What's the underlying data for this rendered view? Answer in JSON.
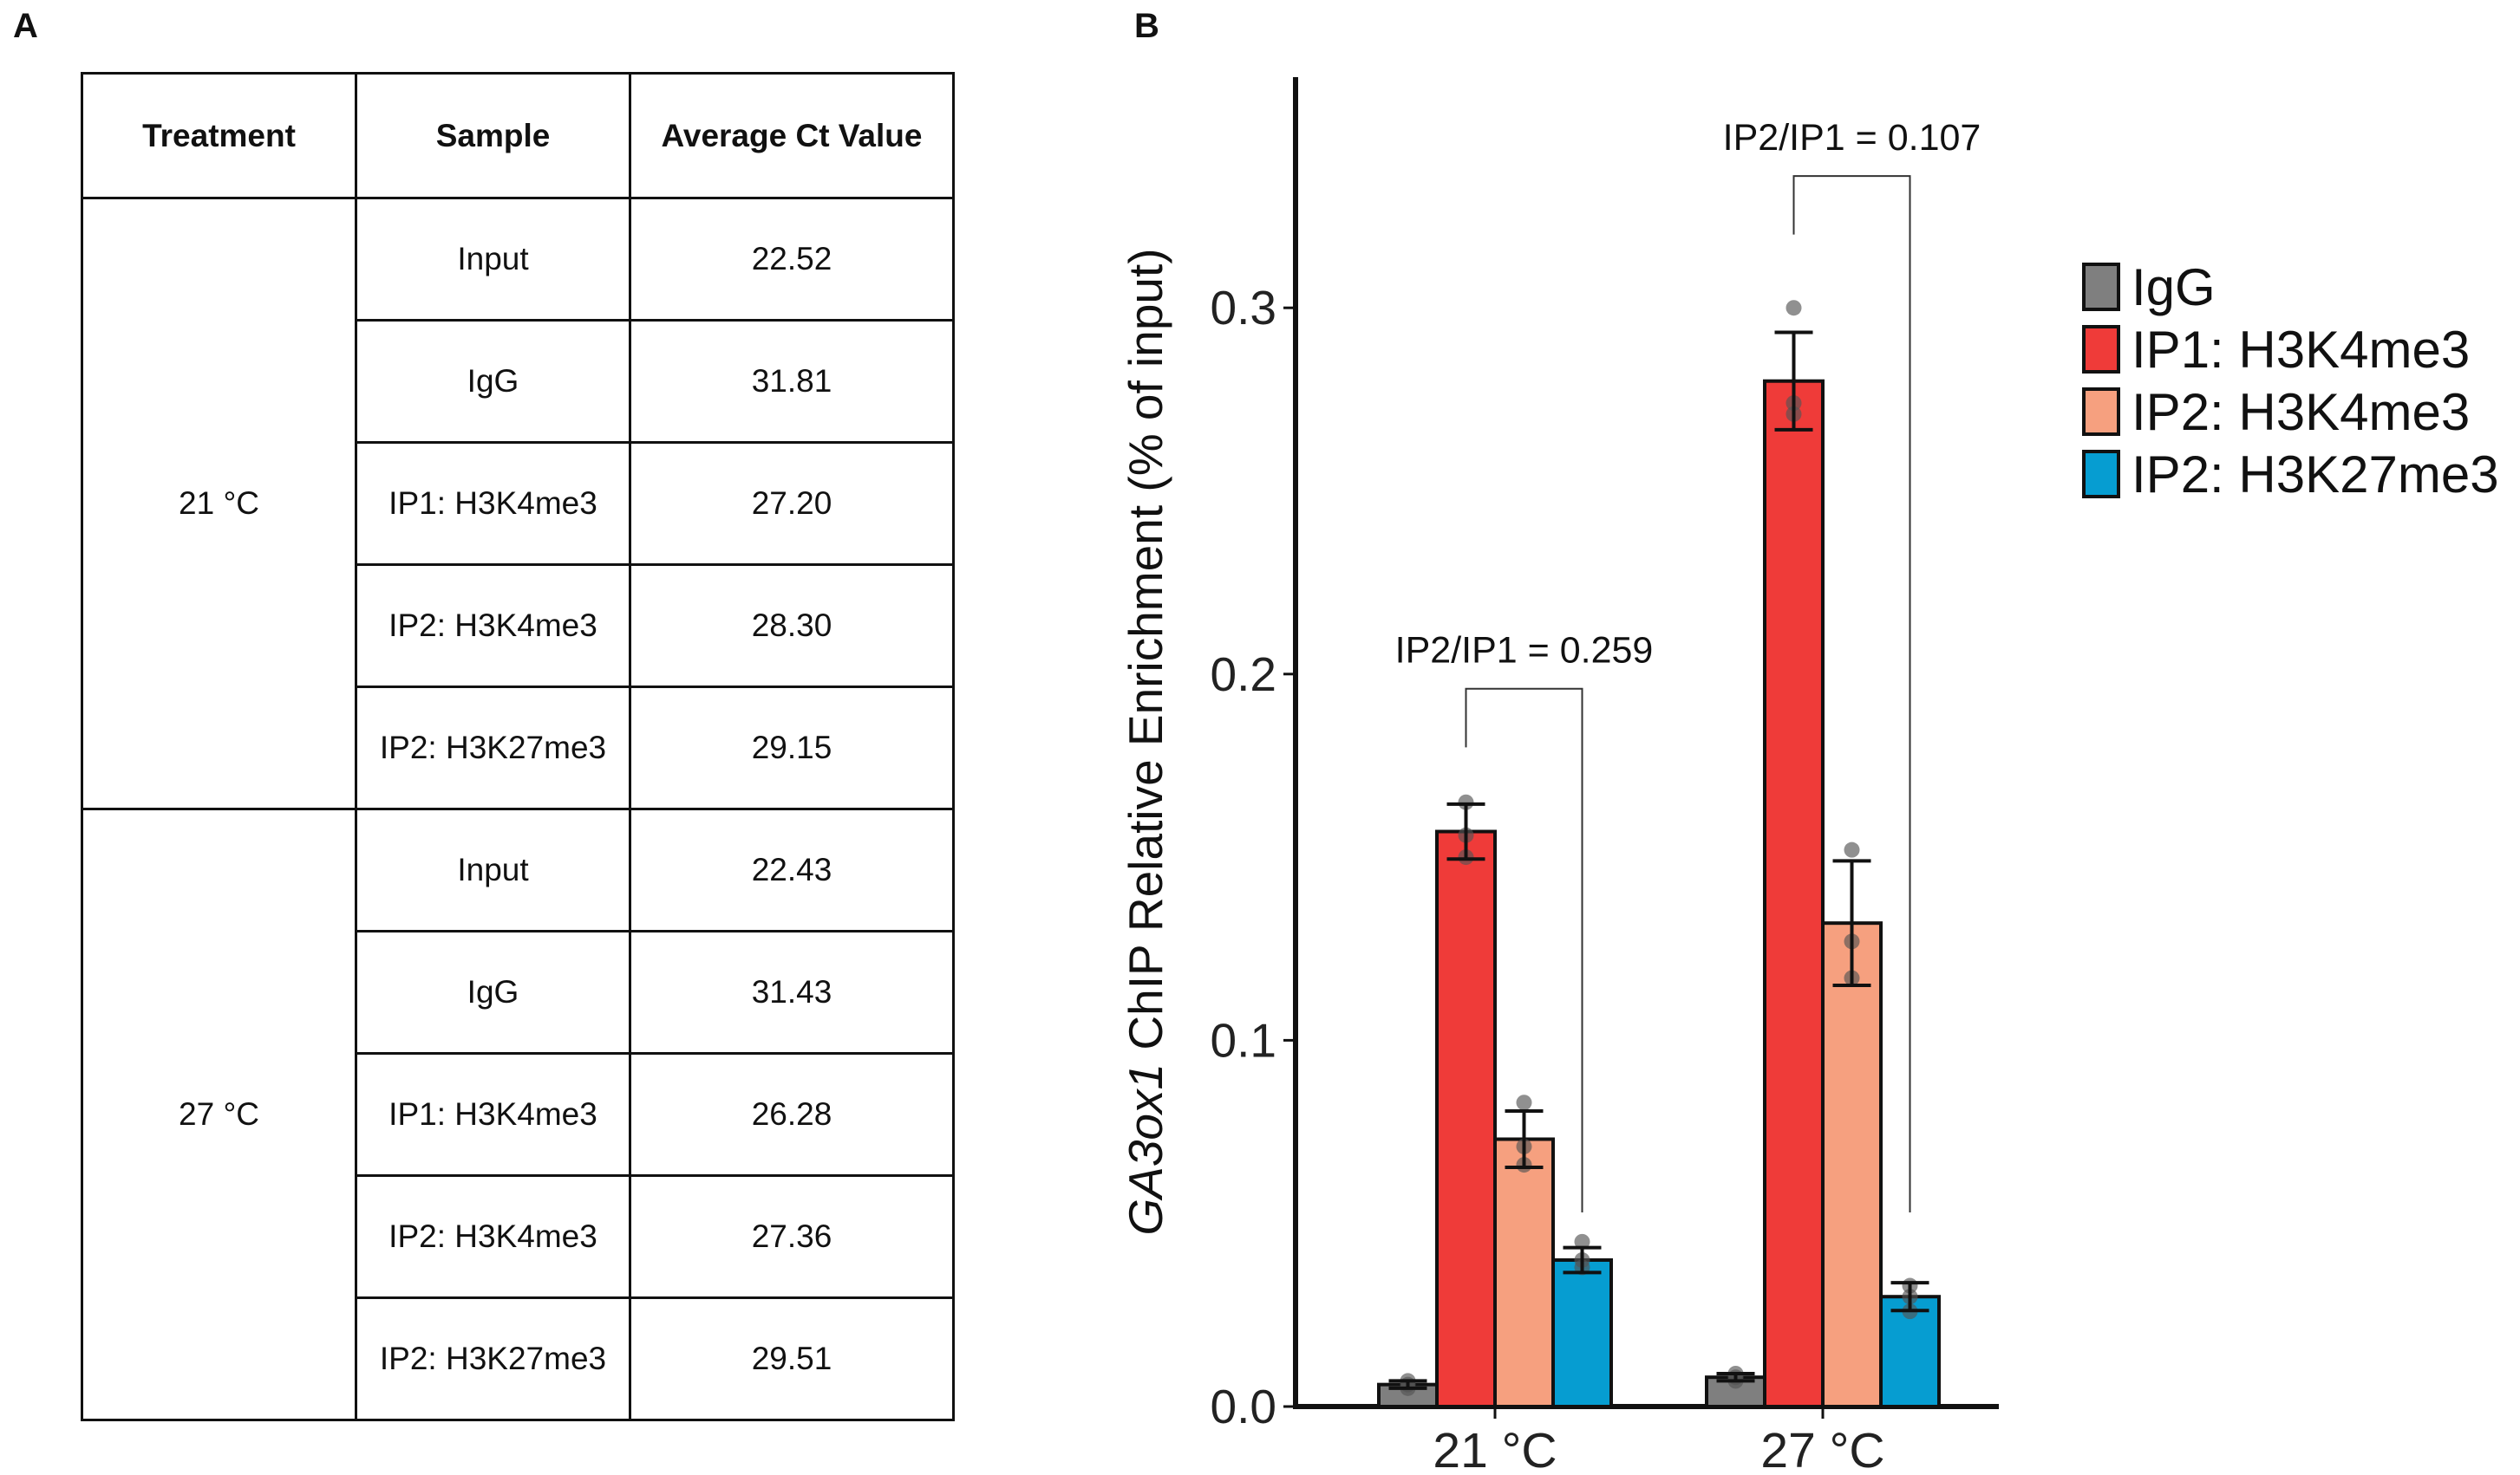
{
  "panels": {
    "a": "A",
    "b": "B"
  },
  "table": {
    "headers": [
      "Treatment",
      "Sample",
      "Average Ct Value"
    ],
    "groups": [
      {
        "treatment": "21 °C",
        "rows": [
          {
            "sample": "Input",
            "ct": "22.52"
          },
          {
            "sample": "IgG",
            "ct": "31.81"
          },
          {
            "sample": "IP1: H3K4me3",
            "ct": "27.20"
          },
          {
            "sample": "IP2: H3K4me3",
            "ct": "28.30"
          },
          {
            "sample": "IP2: H3K27me3",
            "ct": "29.15"
          }
        ]
      },
      {
        "treatment": "27 °C",
        "rows": [
          {
            "sample": "Input",
            "ct": "22.43"
          },
          {
            "sample": "IgG",
            "ct": "31.43"
          },
          {
            "sample": "IP1: H3K4me3",
            "ct": "26.28"
          },
          {
            "sample": "IP2: H3K4me3",
            "ct": "27.36"
          },
          {
            "sample": "IP2: H3K27me3",
            "ct": "29.51"
          }
        ]
      }
    ]
  },
  "chart_data": {
    "type": "bar",
    "ylabel_italic": "GA3ox1",
    "ylabel_rest": " ChIP Relative Enrichment (% of input)",
    "categories": [
      "21 °C",
      "27 °C"
    ],
    "ylim": [
      0,
      0.36
    ],
    "yticks": [
      "0.0",
      "0.1",
      "0.2",
      "0.3"
    ],
    "ytick_values": [
      0,
      0.1,
      0.2,
      0.3
    ],
    "grid": false,
    "legend_position": "right",
    "series": [
      {
        "name": "IgG",
        "color": "#7f7f7f",
        "values": [
          0.006,
          0.008
        ],
        "errors": [
          0.001,
          0.001
        ],
        "points": [
          [
            0.005,
            0.006,
            0.007
          ],
          [
            0.007,
            0.008,
            0.009
          ]
        ]
      },
      {
        "name": "IP1: H3K4me3",
        "color": "#ef3b39",
        "values": [
          0.157,
          0.28
        ],
        "errors": [
          0.0075,
          0.0133
        ],
        "points": [
          [
            0.15,
            0.156,
            0.165
          ],
          [
            0.271,
            0.274,
            0.3
          ]
        ]
      },
      {
        "name": "IP2: H3K4me3",
        "color": "#f6a07f",
        "values": [
          0.073,
          0.132
        ],
        "errors": [
          0.0077,
          0.017
        ],
        "points": [
          [
            0.066,
            0.071,
            0.083
          ],
          [
            0.117,
            0.127,
            0.152
          ]
        ]
      },
      {
        "name": "IP2: H3K27me3",
        "color": "#069dd1",
        "values": [
          0.04,
          0.03
        ],
        "errors": [
          0.0034,
          0.0038
        ],
        "points": [
          [
            0.038,
            0.04,
            0.045
          ],
          [
            0.026,
            0.03,
            0.033
          ]
        ]
      }
    ],
    "annotations": [
      {
        "text": "IP2/IP1 = 0.259",
        "category": 0
      },
      {
        "text": "IP2/IP1 = 0.107",
        "category": 1
      }
    ]
  }
}
